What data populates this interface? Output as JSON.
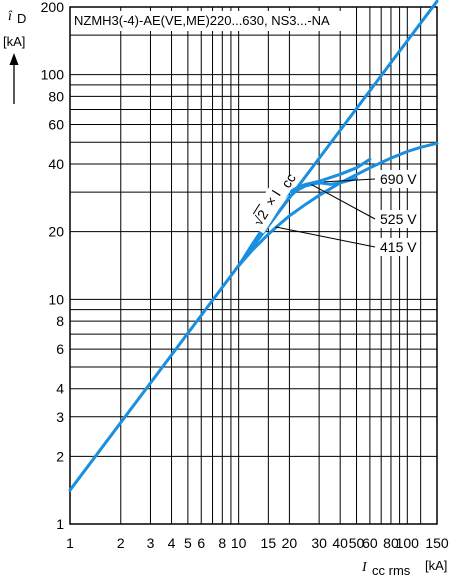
{
  "chart_data": {
    "type": "line",
    "title": "NZMH3(-4)-AE(VE,ME)220...630, NS3...-NA",
    "x_scale": "log",
    "y_scale": "log",
    "xlim": [
      1,
      150
    ],
    "ylim": [
      1,
      200
    ],
    "grid": true,
    "xlabel": {
      "main": "I",
      "sub": "cc rms",
      "unit": "[kA]"
    },
    "ylabel": {
      "main": "î",
      "sub": "D",
      "unit": "[kA]"
    },
    "x_ticks": [
      1,
      2,
      3,
      4,
      5,
      6,
      8,
      10,
      15,
      20,
      30,
      40,
      50,
      60,
      80,
      100,
      150
    ],
    "x_tick_labels": [
      "1",
      "2",
      "3",
      "4",
      "5",
      "6",
      "8",
      "10",
      "15",
      "20",
      "30",
      "40",
      "50",
      "60",
      "80",
      "100",
      "150"
    ],
    "y_ticks": [
      1,
      2,
      3,
      4,
      6,
      8,
      10,
      20,
      40,
      60,
      80,
      100,
      200
    ],
    "y_tick_labels": [
      "1",
      "2",
      "3",
      "4",
      "6",
      "8",
      "10",
      "20",
      "40",
      "60",
      "80",
      "100",
      "200"
    ],
    "reference_line": {
      "label_radical": "√2",
      "label_rest": "× I",
      "label_sub": "cc",
      "color": "#1a8fe0",
      "x": [
        1,
        150
      ],
      "y": [
        1.414,
        212
      ]
    },
    "series": [
      {
        "name": "690 V",
        "color": "#1a8fe0",
        "x": [
          10,
          12,
          15,
          18,
          20,
          22,
          25,
          30,
          40,
          50,
          60
        ],
        "y": [
          14.1,
          17.5,
          22.5,
          27.5,
          30,
          31.3,
          32.5,
          33.5,
          36,
          38.5,
          42
        ]
      },
      {
        "name": "525 V",
        "color": "#1a8fe0",
        "x": [
          10,
          12,
          15,
          18,
          20,
          22,
          25,
          30,
          35,
          40,
          50
        ],
        "y": [
          14.1,
          17,
          21.5,
          25.5,
          28.5,
          30.5,
          32,
          33,
          32.5,
          33,
          34.5
        ]
      },
      {
        "name": "415 V",
        "color": "#1a8fe0",
        "x": [
          10,
          12,
          15,
          18,
          20,
          25,
          30,
          40,
          60,
          80,
          100,
          120,
          150
        ],
        "y": [
          14.1,
          16.5,
          19.5,
          22,
          23.5,
          26.5,
          29,
          33,
          38.5,
          42.5,
          45.5,
          47.5,
          49.5
        ]
      }
    ]
  }
}
